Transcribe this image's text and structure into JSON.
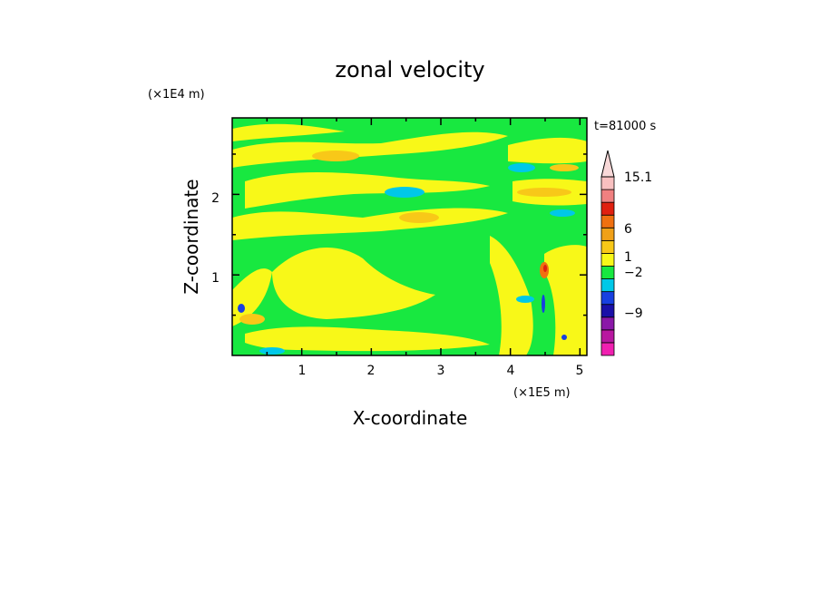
{
  "chart_data": {
    "type": "heatmap",
    "title": "zonal velocity",
    "xlabel": "X-coordinate",
    "ylabel": "Z-coordinate",
    "x_unit": "(×1E5 m)",
    "y_unit": "(×1E4 m)",
    "time_label": "t=81000 s",
    "x_ticks": [
      "1",
      "2",
      "3",
      "4",
      "5"
    ],
    "y_ticks": [
      "1",
      "2"
    ],
    "xlim": [
      0,
      5.1
    ],
    "ylim": [
      0,
      2.95
    ],
    "colorbar": {
      "labels": [
        "15.1",
        "6",
        "1",
        "−2",
        "−9"
      ],
      "levels": [
        -15,
        -12,
        -9,
        -6,
        -3,
        -2,
        -1,
        0,
        1,
        2,
        3,
        6,
        9,
        12,
        15.1
      ],
      "colors": [
        "#f020b0",
        "#b818a0",
        "#8a18a8",
        "#1a10a8",
        "#1840e0",
        "#00c8e8",
        "#18e840",
        "#f8f818",
        "#f8c818",
        "#f0a018",
        "#f07010",
        "#e02010",
        "#f08080",
        "#f8c0c0"
      ],
      "extend": "max",
      "extend_color": "#f8d8d8"
    },
    "background_color": "#18e840"
  }
}
